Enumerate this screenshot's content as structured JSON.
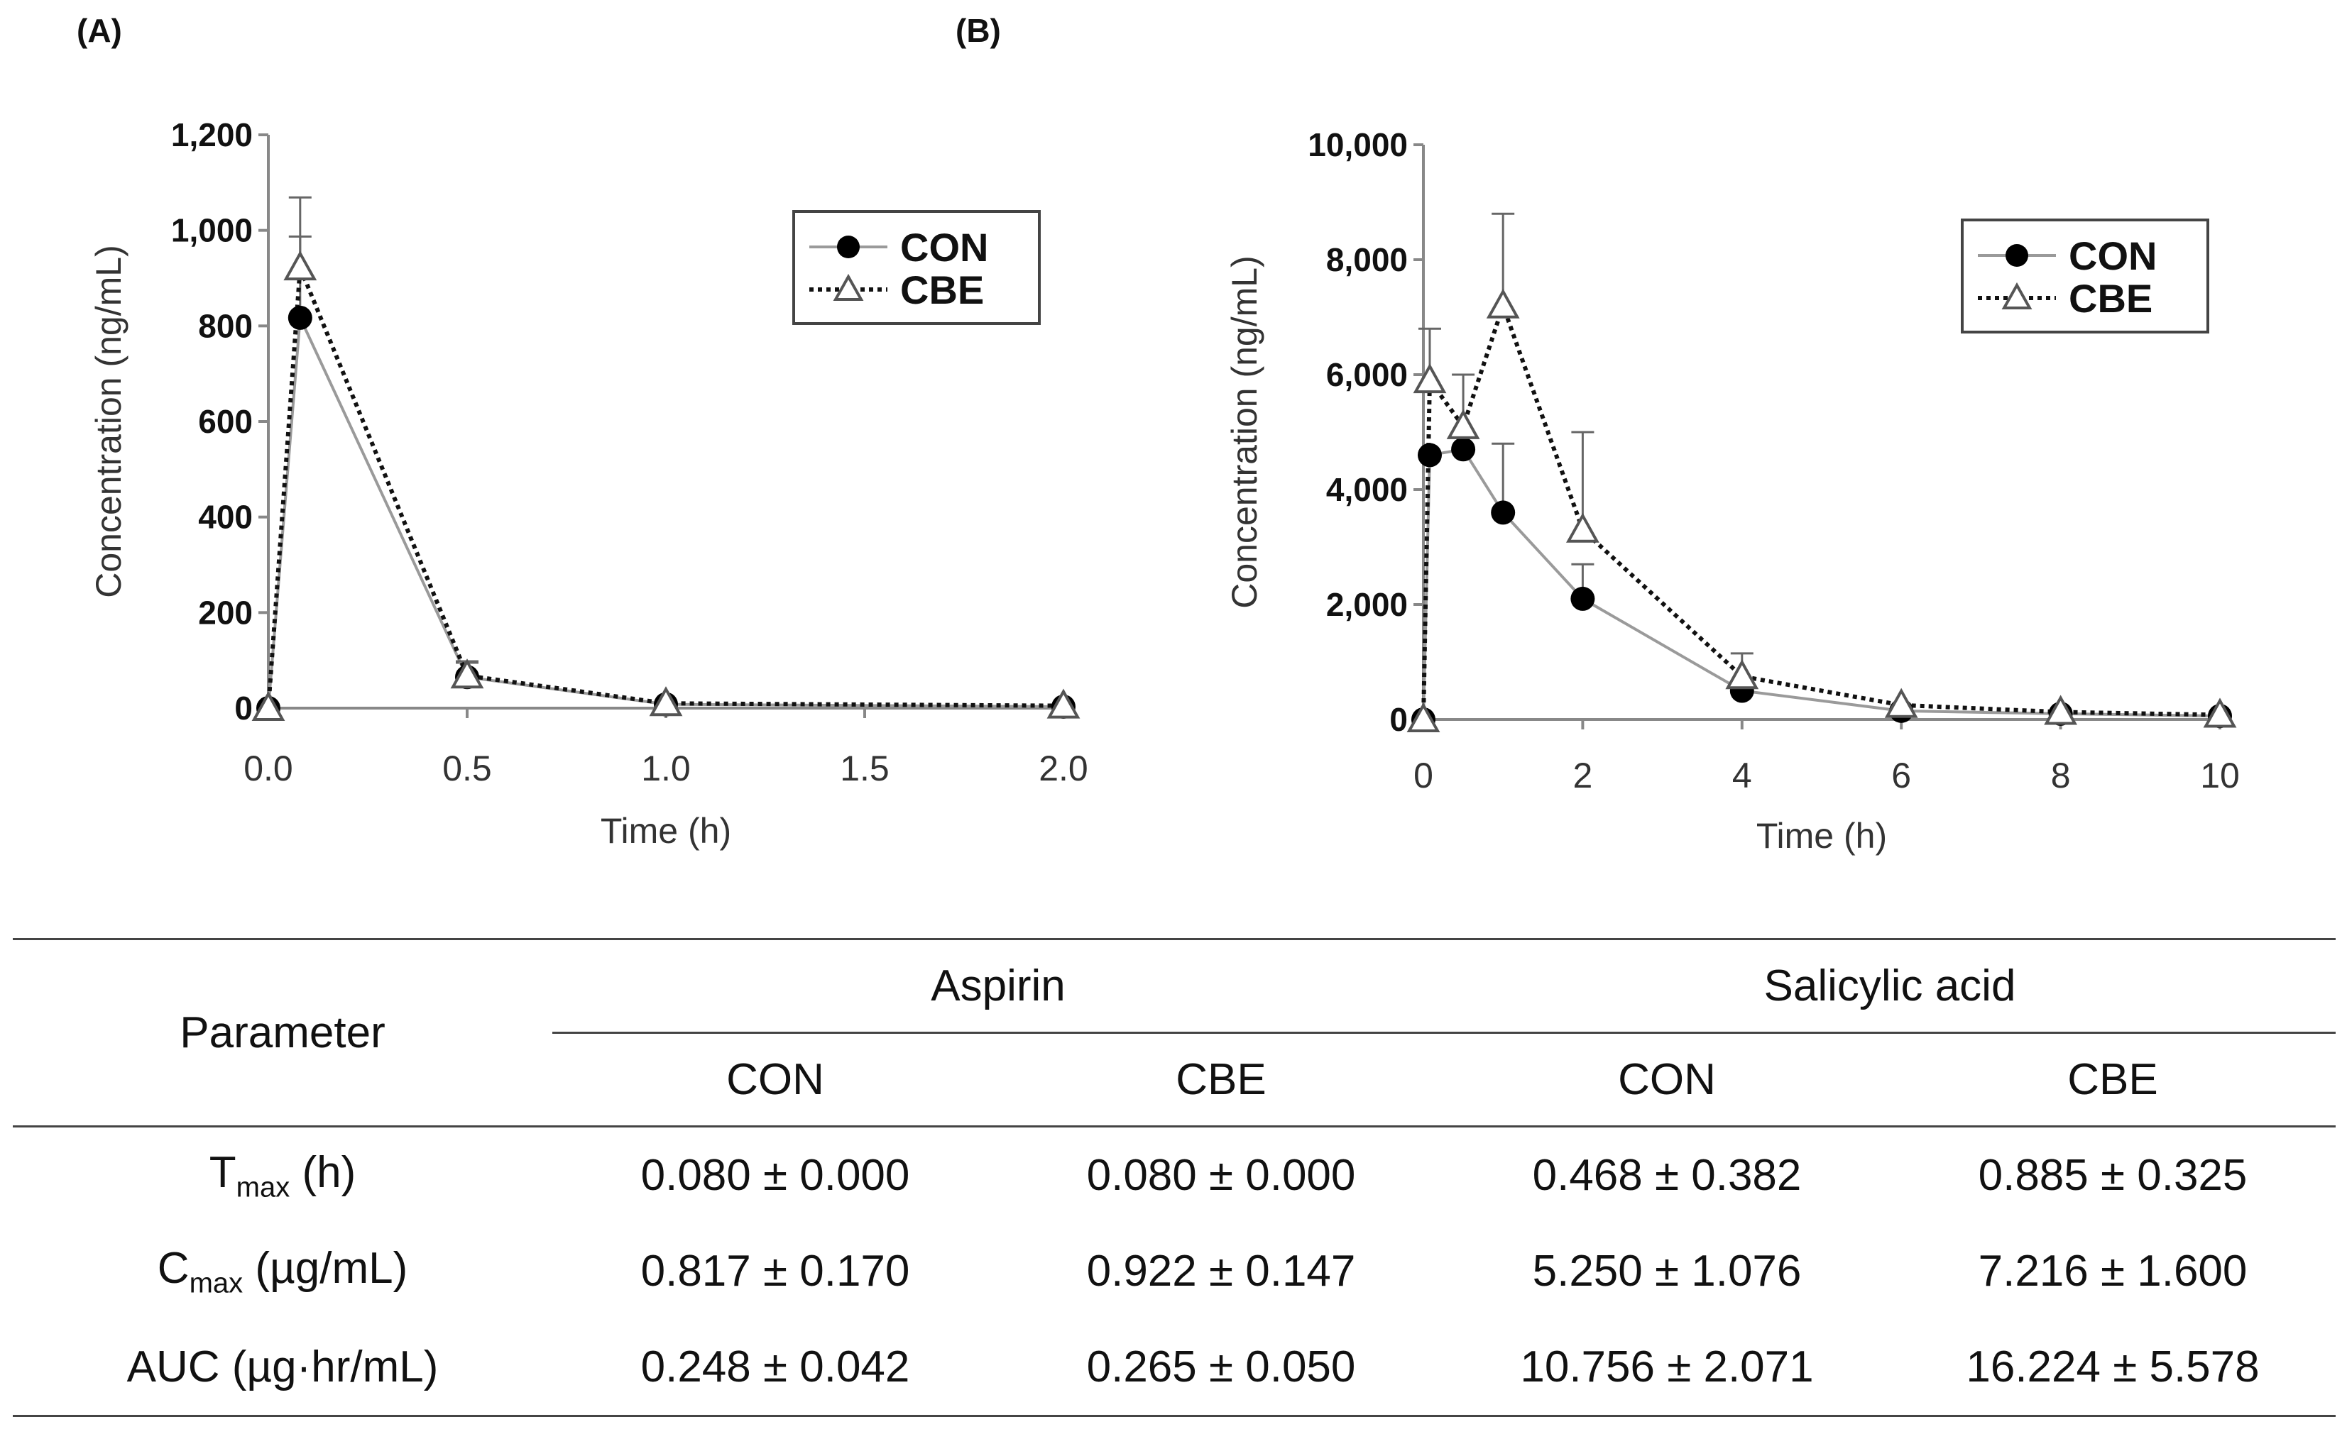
{
  "panels": {
    "a_label": "(A)",
    "b_label": "(B)"
  },
  "chart_data": [
    {
      "type": "line",
      "panel": "(A)",
      "xlabel": "Time (h)",
      "ylabel": "Concentration (ng/mL)",
      "xlim": [
        0,
        2
      ],
      "ylim": [
        0,
        1200
      ],
      "x_ticks": [
        0,
        0.5,
        1,
        1.5,
        2
      ],
      "x_tick_labels": [
        "0.0",
        "0.5",
        "1.0",
        "1.5",
        "2.0"
      ],
      "y_ticks": [
        0,
        200,
        400,
        600,
        800,
        1000,
        1200
      ],
      "y_tick_labels": [
        "0",
        "200",
        "400",
        "600",
        "800",
        "1,000",
        "1,200"
      ],
      "legend": [
        "CON",
        "CBE"
      ],
      "legend_position": "top-right",
      "series": [
        {
          "name": "CON",
          "x": [
            0,
            0.08,
            0.5,
            1,
            2
          ],
          "values": [
            0,
            817,
            65,
            8,
            3
          ],
          "error": [
            0,
            170,
            30,
            0,
            0
          ],
          "marker": "filled-circle",
          "line": "solid",
          "color": "#9a9a9a"
        },
        {
          "name": "CBE",
          "x": [
            0,
            0.08,
            0.5,
            1,
            2
          ],
          "values": [
            0,
            922,
            68,
            10,
            5
          ],
          "error": [
            0,
            147,
            30,
            0,
            0
          ],
          "marker": "open-triangle",
          "line": "dotted",
          "color": "#111111"
        }
      ]
    },
    {
      "type": "line",
      "panel": "(B)",
      "xlabel": "Time (h)",
      "ylabel": "Concentration (ng/mL)",
      "xlim": [
        0,
        10
      ],
      "ylim": [
        0,
        10000
      ],
      "x_ticks": [
        0,
        2,
        4,
        6,
        8,
        10
      ],
      "x_tick_labels": [
        "0",
        "2",
        "4",
        "6",
        "8",
        "10"
      ],
      "y_ticks": [
        0,
        2000,
        4000,
        6000,
        8000,
        10000
      ],
      "y_tick_labels": [
        "0",
        "2,000",
        "4,000",
        "6,000",
        "8,000",
        "10,000"
      ],
      "legend": [
        "CON",
        "CBE"
      ],
      "legend_position": "top-right",
      "series": [
        {
          "name": "CON",
          "x": [
            0,
            0.08,
            0.5,
            1,
            2,
            4,
            6,
            8,
            10
          ],
          "values": [
            0,
            4600,
            4700,
            3600,
            2100,
            500,
            150,
            100,
            60
          ],
          "error": [
            0,
            0,
            1300,
            1200,
            600,
            0,
            0,
            0,
            0
          ],
          "marker": "filled-circle",
          "line": "solid",
          "color": "#9a9a9a"
        },
        {
          "name": "CBE",
          "x": [
            0,
            0.08,
            0.5,
            1,
            2,
            4,
            6,
            8,
            10
          ],
          "values": [
            0,
            5900,
            5100,
            7200,
            3300,
            750,
            250,
            130,
            80
          ],
          "error": [
            0,
            900,
            0,
            1600,
            1700,
            400,
            0,
            0,
            0
          ],
          "marker": "open-triangle",
          "line": "dotted",
          "color": "#111111"
        }
      ]
    }
  ],
  "table": {
    "parameter_header": "Parameter",
    "group_headers": [
      "Aspirin",
      "Salicylic acid"
    ],
    "sub_headers": [
      "CON",
      "CBE",
      "CON",
      "CBE"
    ],
    "rows": [
      {
        "label_main": "T",
        "label_sub": "max",
        "label_rest": " (h)",
        "values": [
          "0.080 ± 0.000",
          "0.080 ± 0.000",
          "0.468 ± 0.382",
          "0.885 ± 0.325"
        ]
      },
      {
        "label_main": "C",
        "label_sub": "max",
        "label_rest": " (µg/mL)",
        "values": [
          "0.817 ± 0.170",
          "0.922 ± 0.147",
          "5.250 ± 1.076",
          "7.216 ± 1.600"
        ]
      },
      {
        "label_main": "AUC (µg·hr/mL)",
        "label_sub": "",
        "label_rest": "",
        "values": [
          "0.248 ± 0.042",
          "0.265 ± 0.050",
          "10.756 ± 2.071",
          "16.224 ± 5.578"
        ]
      }
    ]
  }
}
